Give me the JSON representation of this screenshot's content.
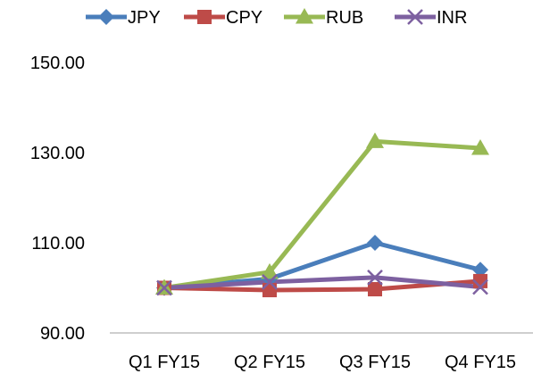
{
  "chart_data": {
    "type": "line",
    "title": "",
    "xlabel": "",
    "ylabel": "",
    "categories": [
      "Q1 FY15",
      "Q2 FY15",
      "Q3 FY15",
      "Q4 FY15"
    ],
    "ylim": [
      90,
      150
    ],
    "yticks": [
      90,
      110,
      130,
      150
    ],
    "ytick_labels": [
      "90.00",
      "110.00",
      "130.00",
      "150.00"
    ],
    "grid": false,
    "legend_position": "top",
    "series": [
      {
        "name": "JPY",
        "color": "#4a7ebb",
        "marker": "diamond",
        "values": [
          100.0,
          102.0,
          110.0,
          104.0
        ]
      },
      {
        "name": "CPY",
        "color": "#be4b48",
        "marker": "square",
        "values": [
          100.0,
          99.5,
          99.7,
          101.5
        ]
      },
      {
        "name": "RUB",
        "color": "#98b954",
        "marker": "triangle",
        "values": [
          100.0,
          103.5,
          132.5,
          131.0
        ]
      },
      {
        "name": "INR",
        "color": "#7d60a0",
        "marker": "x",
        "values": [
          100.0,
          101.3,
          102.3,
          100.2
        ]
      }
    ]
  }
}
